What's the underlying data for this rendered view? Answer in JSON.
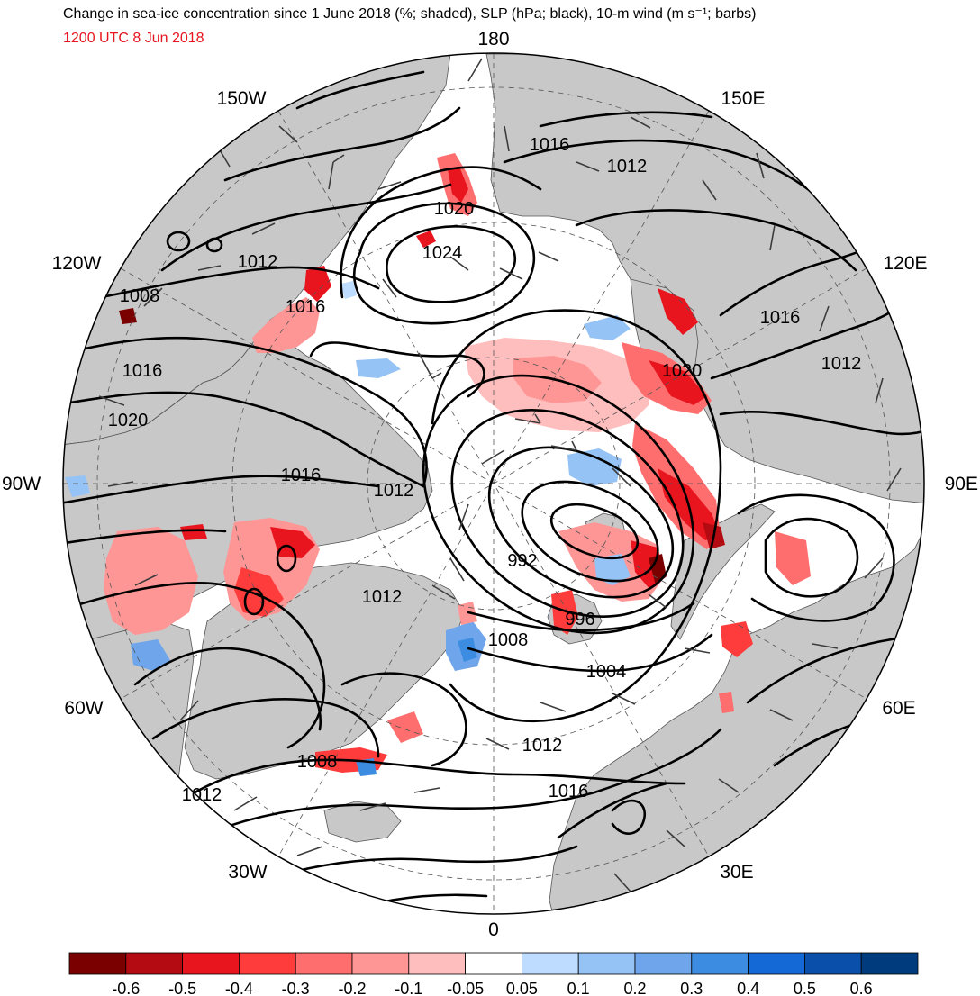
{
  "header": {
    "title": "Change in sea-ice concentration since 1 June 2018 (%; shaded), SLP (hPa; black), 10-m wind (m s⁻¹; barbs)",
    "valid_time": "1200 UTC 8 Jun 2018"
  },
  "colors": {
    "land": "#c8c8c8",
    "ocean": "#ffffff",
    "valid_time": "#e8141e",
    "contour": "#000000",
    "barb": "#3c3c3c"
  },
  "longitude_labels": [
    {
      "lon": "180",
      "text": "180"
    },
    {
      "lon": "150E",
      "text": "150E"
    },
    {
      "lon": "120E",
      "text": "120E"
    },
    {
      "lon": "90E",
      "text": "90E"
    },
    {
      "lon": "60E",
      "text": "60E"
    },
    {
      "lon": "30E",
      "text": "30E"
    },
    {
      "lon": "0",
      "text": "0"
    },
    {
      "lon": "30W",
      "text": "30W"
    },
    {
      "lon": "60W",
      "text": "60W"
    },
    {
      "lon": "90W",
      "text": "90W"
    },
    {
      "lon": "120W",
      "text": "120W"
    },
    {
      "lon": "150W",
      "text": "150W"
    }
  ],
  "slp_labels": [
    {
      "text": "1016"
    },
    {
      "text": "1012"
    },
    {
      "text": "1020"
    },
    {
      "text": "1024"
    },
    {
      "text": "1012"
    },
    {
      "text": "1008"
    },
    {
      "text": "1016"
    },
    {
      "text": "1016"
    },
    {
      "text": "1020"
    },
    {
      "text": "1016"
    },
    {
      "text": "1012"
    },
    {
      "text": "1016"
    },
    {
      "text": "1020"
    },
    {
      "text": "1012"
    },
    {
      "text": "992"
    },
    {
      "text": "996"
    },
    {
      "text": "1012"
    },
    {
      "text": "1008"
    },
    {
      "text": "1004"
    },
    {
      "text": "1012"
    },
    {
      "text": "1008"
    },
    {
      "text": "1016"
    },
    {
      "text": "1012"
    }
  ],
  "colorbar": {
    "colors": [
      "#7a0000",
      "#b40a12",
      "#e8141e",
      "#ff3c3c",
      "#ff6e6e",
      "#ff9696",
      "#ffbebe",
      "#ffffff",
      "#bedcff",
      "#96c3f5",
      "#6ea5eb",
      "#3c8ce1",
      "#1469d7",
      "#0a50aa",
      "#003c7d"
    ],
    "labels": [
      "-0.6",
      "-0.5",
      "-0.4",
      "-0.3",
      "-0.2",
      "-0.1",
      "-0.05",
      "0.05",
      "0.1",
      "0.2",
      "0.3",
      "0.4",
      "0.5",
      "0.6"
    ]
  }
}
